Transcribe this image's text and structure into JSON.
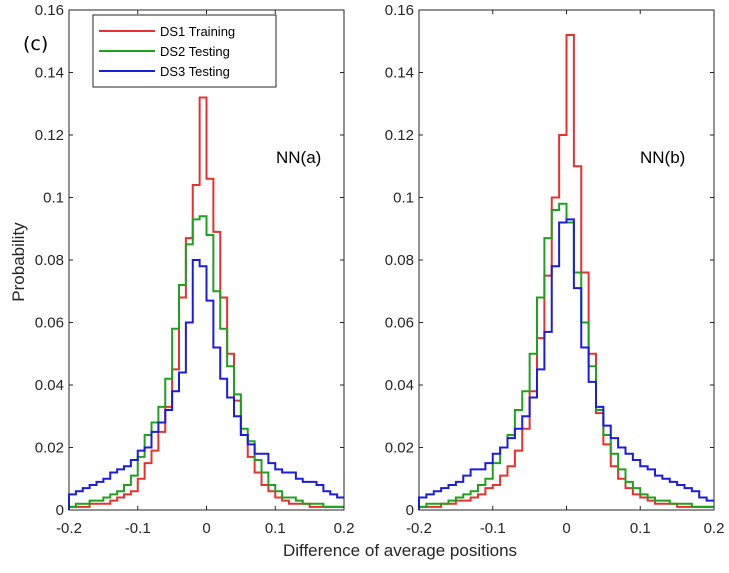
{
  "figure": {
    "panel_label": "(c)",
    "xlabel": "Difference of average positions",
    "ylabel": "Probability"
  },
  "legend": [
    "DS1 Training",
    "DS2 Testing",
    "DS3 Testing"
  ],
  "colors": {
    "DS1 Training": "#e8302f",
    "DS2 Testing": "#1ea21e",
    "DS3 Testing": "#1c1cdc"
  },
  "chart_data": [
    {
      "type": "histogram",
      "annotation": "NN(a)",
      "xlim": [
        -0.2,
        0.2
      ],
      "ylim": [
        0,
        0.16
      ],
      "xticks": [
        -0.2,
        -0.1,
        0,
        0.1,
        0.2
      ],
      "yticks": [
        0,
        0.02,
        0.04,
        0.06,
        0.08,
        0.1,
        0.12,
        0.14,
        0.16
      ],
      "xtick_labels": [
        "-0.2",
        "-0.1",
        "0",
        "0.1",
        "0.2"
      ],
      "ytick_labels": [
        "0",
        "0.02",
        "0.04",
        "0.06",
        "0.08",
        "0.1",
        "0.12",
        "0.14",
        "0.16"
      ],
      "bin_start": -0.2,
      "bin_width": 0.01,
      "series": [
        {
          "name": "DS1 Training",
          "values": [
            0.001,
            0.001,
            0.001,
            0.002,
            0.002,
            0.002,
            0.003,
            0.004,
            0.005,
            0.006,
            0.01,
            0.015,
            0.019,
            0.025,
            0.033,
            0.045,
            0.068,
            0.087,
            0.104,
            0.132,
            0.106,
            0.089,
            0.068,
            0.05,
            0.035,
            0.024,
            0.017,
            0.012,
            0.008,
            0.006,
            0.004,
            0.003,
            0.002,
            0.002,
            0.002,
            0.001,
            0.001,
            0.001,
            0.001,
            0.001
          ]
        },
        {
          "name": "DS2 Testing",
          "values": [
            0.001,
            0.002,
            0.002,
            0.003,
            0.003,
            0.004,
            0.005,
            0.006,
            0.008,
            0.011,
            0.017,
            0.024,
            0.028,
            0.033,
            0.042,
            0.058,
            0.072,
            0.085,
            0.093,
            0.094,
            0.088,
            0.07,
            0.058,
            0.046,
            0.037,
            0.026,
            0.022,
            0.016,
            0.012,
            0.008,
            0.006,
            0.004,
            0.004,
            0.003,
            0.002,
            0.002,
            0.002,
            0.001,
            0.001,
            0.001
          ]
        },
        {
          "name": "DS3 Testing",
          "values": [
            0.005,
            0.006,
            0.007,
            0.008,
            0.009,
            0.01,
            0.012,
            0.013,
            0.014,
            0.016,
            0.019,
            0.02,
            0.025,
            0.028,
            0.032,
            0.038,
            0.044,
            0.06,
            0.08,
            0.078,
            0.067,
            0.052,
            0.042,
            0.036,
            0.03,
            0.024,
            0.021,
            0.018,
            0.018,
            0.015,
            0.013,
            0.012,
            0.012,
            0.01,
            0.009,
            0.009,
            0.008,
            0.006,
            0.005,
            0.004
          ]
        }
      ]
    },
    {
      "type": "histogram",
      "annotation": "NN(b)",
      "xlim": [
        -0.2,
        0.2
      ],
      "ylim": [
        0,
        0.16
      ],
      "xticks": [
        -0.2,
        -0.1,
        0,
        0.1,
        0.2
      ],
      "yticks": [
        0,
        0.02,
        0.04,
        0.06,
        0.08,
        0.1,
        0.12,
        0.14,
        0.16
      ],
      "xtick_labels": [
        "-0.2",
        "-0.1",
        "0",
        "0.1",
        "0.2"
      ],
      "ytick_labels": [
        "0",
        "0.02",
        "0.04",
        "0.06",
        "0.08",
        "0.1",
        "0.12",
        "0.14",
        "0.16"
      ],
      "bin_start": -0.2,
      "bin_width": 0.01,
      "series": [
        {
          "name": "DS1 Training",
          "values": [
            0.001,
            0.001,
            0.001,
            0.002,
            0.002,
            0.003,
            0.003,
            0.004,
            0.005,
            0.007,
            0.008,
            0.011,
            0.014,
            0.019,
            0.026,
            0.038,
            0.055,
            0.075,
            0.1,
            0.12,
            0.152,
            0.11,
            0.076,
            0.05,
            0.031,
            0.021,
            0.014,
            0.01,
            0.007,
            0.005,
            0.004,
            0.003,
            0.002,
            0.002,
            0.002,
            0.001,
            0.001,
            0.001,
            0.001,
            0.001
          ]
        },
        {
          "name": "DS2 Testing",
          "values": [
            0.001,
            0.002,
            0.002,
            0.002,
            0.003,
            0.004,
            0.005,
            0.006,
            0.008,
            0.01,
            0.015,
            0.02,
            0.024,
            0.032,
            0.038,
            0.05,
            0.068,
            0.087,
            0.096,
            0.098,
            0.092,
            0.076,
            0.06,
            0.046,
            0.032,
            0.024,
            0.018,
            0.013,
            0.009,
            0.007,
            0.005,
            0.004,
            0.003,
            0.003,
            0.002,
            0.002,
            0.002,
            0.001,
            0.001,
            0.001
          ]
        },
        {
          "name": "DS3 Testing",
          "values": [
            0.004,
            0.005,
            0.006,
            0.007,
            0.008,
            0.009,
            0.011,
            0.013,
            0.013,
            0.015,
            0.018,
            0.02,
            0.023,
            0.026,
            0.03,
            0.036,
            0.045,
            0.057,
            0.078,
            0.092,
            0.093,
            0.071,
            0.052,
            0.041,
            0.033,
            0.027,
            0.023,
            0.02,
            0.018,
            0.016,
            0.014,
            0.013,
            0.011,
            0.01,
            0.009,
            0.008,
            0.007,
            0.006,
            0.004,
            0.003
          ]
        }
      ]
    }
  ]
}
